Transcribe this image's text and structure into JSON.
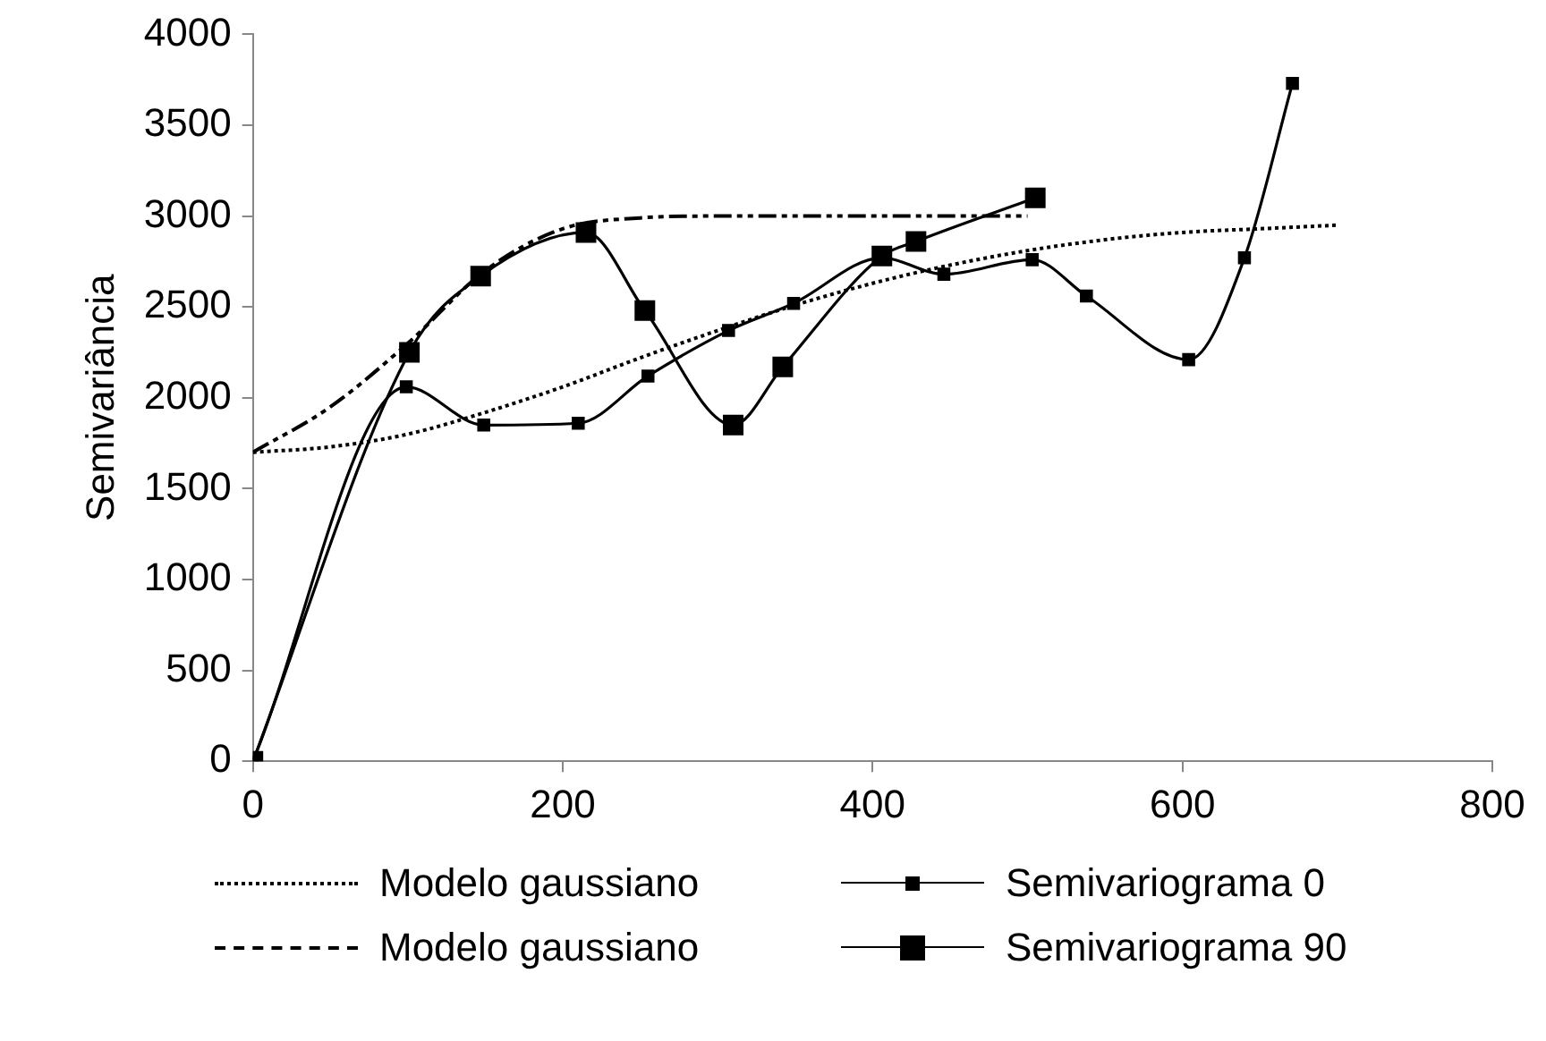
{
  "chart_data": {
    "type": "line",
    "ylabel": "Semivariância",
    "xlim": [
      0,
      800
    ],
    "xticks": [
      0,
      200,
      400,
      600,
      800
    ],
    "ylim": [
      0,
      4000
    ],
    "yticks": [
      0,
      500,
      1000,
      1500,
      2000,
      2500,
      3000,
      3500,
      4000
    ],
    "grid": false,
    "legend": "bottom",
    "series": [
      {
        "name": "Modelo gaussiano",
        "color": "#000000",
        "line_style": "dotted",
        "marker": "none",
        "x": [
          0,
          50,
          100,
          150,
          200,
          250,
          300,
          350,
          400,
          450,
          500,
          550,
          600,
          650,
          700
        ],
        "values": [
          1700,
          1730,
          1800,
          1920,
          2060,
          2220,
          2370,
          2510,
          2630,
          2730,
          2810,
          2870,
          2910,
          2930,
          2950
        ]
      },
      {
        "name": "Semivariograma 0",
        "color": "#000000",
        "line_style": "solid",
        "marker": "square",
        "x": [
          0,
          99,
          149,
          210,
          255,
          307,
          349,
          406,
          446,
          503,
          538,
          604,
          640,
          671
        ],
        "values": [
          0,
          2060,
          1850,
          1860,
          2120,
          2370,
          2520,
          2770,
          2680,
          2760,
          2560,
          2210,
          2770,
          3730
        ]
      },
      {
        "name": "Modelo gaussiano",
        "color": "#000000",
        "line_style": "dashed",
        "marker": "none",
        "x": [
          0,
          50,
          100,
          150,
          200,
          250,
          300,
          350,
          400,
          450,
          500
        ],
        "values": [
          1700,
          1950,
          2300,
          2700,
          2930,
          2990,
          3000,
          3000,
          3000,
          3000,
          3000
        ]
      },
      {
        "name": "Semivariograma 90",
        "color": "#000000",
        "line_style": "solid",
        "marker": "square",
        "x": [
          0,
          101,
          147,
          215,
          253,
          310,
          342,
          406,
          428,
          505
        ],
        "values": [
          0,
          2250,
          2670,
          2910,
          2480,
          1850,
          2170,
          2780,
          2860,
          3100
        ]
      }
    ]
  }
}
